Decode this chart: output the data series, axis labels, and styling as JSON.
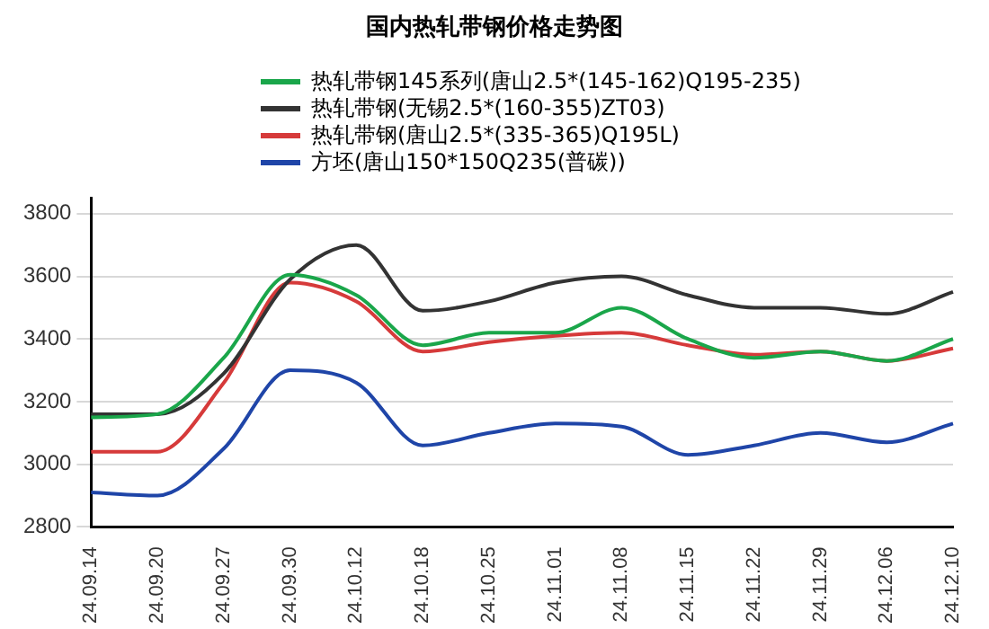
{
  "chart_data": {
    "type": "line",
    "title": "国内热轧带钢价格走势图",
    "categories": [
      "24.09.14",
      "24.09.20",
      "24.09.27",
      "24.09.30",
      "24.10.12",
      "24.10.18",
      "24.10.25",
      "24.11.01",
      "24.11.08",
      "24.11.15",
      "24.11.22",
      "24.11.29",
      "24.12.06",
      "24.12.10"
    ],
    "series": [
      {
        "name": "热轧带钢145系列(唐山2.5*(145-162)Q195-235)",
        "color": "#1aa64a",
        "values": [
          3150,
          3160,
          3340,
          3605,
          3540,
          3380,
          3420,
          3420,
          3500,
          3400,
          3340,
          3360,
          3330,
          3400
        ]
      },
      {
        "name": "热轧带钢(无锡2.5*(160-355)ZT03)",
        "color": "#333333",
        "values": [
          3160,
          3160,
          3290,
          3590,
          3700,
          3490,
          3520,
          3580,
          3600,
          3540,
          3500,
          3500,
          3480,
          3550
        ]
      },
      {
        "name": "热轧带钢(唐山2.5*(335-365)Q195L)",
        "color": "#d63a3a",
        "values": [
          3040,
          3040,
          3260,
          3580,
          3520,
          3360,
          3390,
          3410,
          3420,
          3380,
          3350,
          3360,
          3330,
          3370
        ]
      },
      {
        "name": "方坯(唐山150*150Q235(普碳))",
        "color": "#1f45a8",
        "values": [
          2910,
          2900,
          3050,
          3300,
          3260,
          3060,
          3100,
          3130,
          3120,
          3030,
          3060,
          3100,
          3070,
          3130
        ]
      }
    ],
    "ylim": [
      2800,
      3850
    ],
    "yticks": [
      2800,
      3000,
      3200,
      3400,
      3600,
      3800
    ],
    "grid": "y",
    "legend": "top",
    "marker": "none",
    "line_style": "solid"
  }
}
